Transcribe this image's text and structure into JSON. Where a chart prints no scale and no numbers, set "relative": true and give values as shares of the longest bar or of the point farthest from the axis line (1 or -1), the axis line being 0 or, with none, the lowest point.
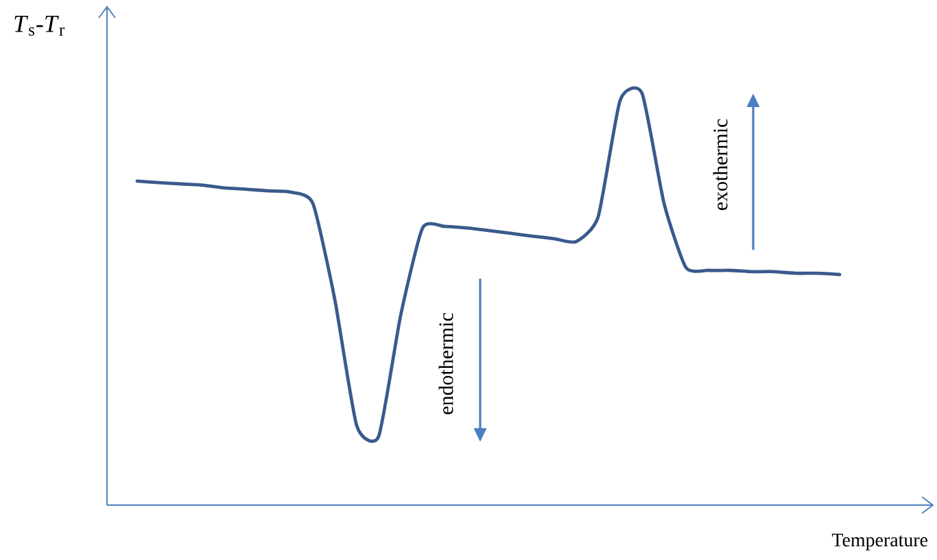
{
  "chart_data": {
    "type": "line",
    "relative": true,
    "xlabel": "Temperature",
    "ylabel": "*T*$_{s}$-*T*$_{r}$",
    "color": "#3a5a8c",
    "categories": [
      null,
      null,
      null,
      null,
      null,
      null,
      null,
      null,
      null,
      null,
      null,
      null,
      null,
      null,
      null,
      null,
      null,
      null,
      null,
      null,
      null,
      null,
      null,
      null,
      null,
      null,
      null,
      null,
      null,
      null,
      null,
      null,
      null
    ],
    "values": [
      0.787,
      0.783,
      0.78,
      0.777,
      0.77,
      0.767,
      0.763,
      0.76,
      0.733,
      0.5,
      0.193,
      0.167,
      0.46,
      0.673,
      0.677,
      0.673,
      0.667,
      0.66,
      0.653,
      0.647,
      0.64,
      0.7,
      0.983,
      1,
      0.733,
      0.577,
      0.57,
      0.57,
      0.567,
      0.567,
      0.563,
      0.563,
      0.56
    ],
    "annotations": [
      "endothermic",
      "exothermic"
    ]
  }
}
